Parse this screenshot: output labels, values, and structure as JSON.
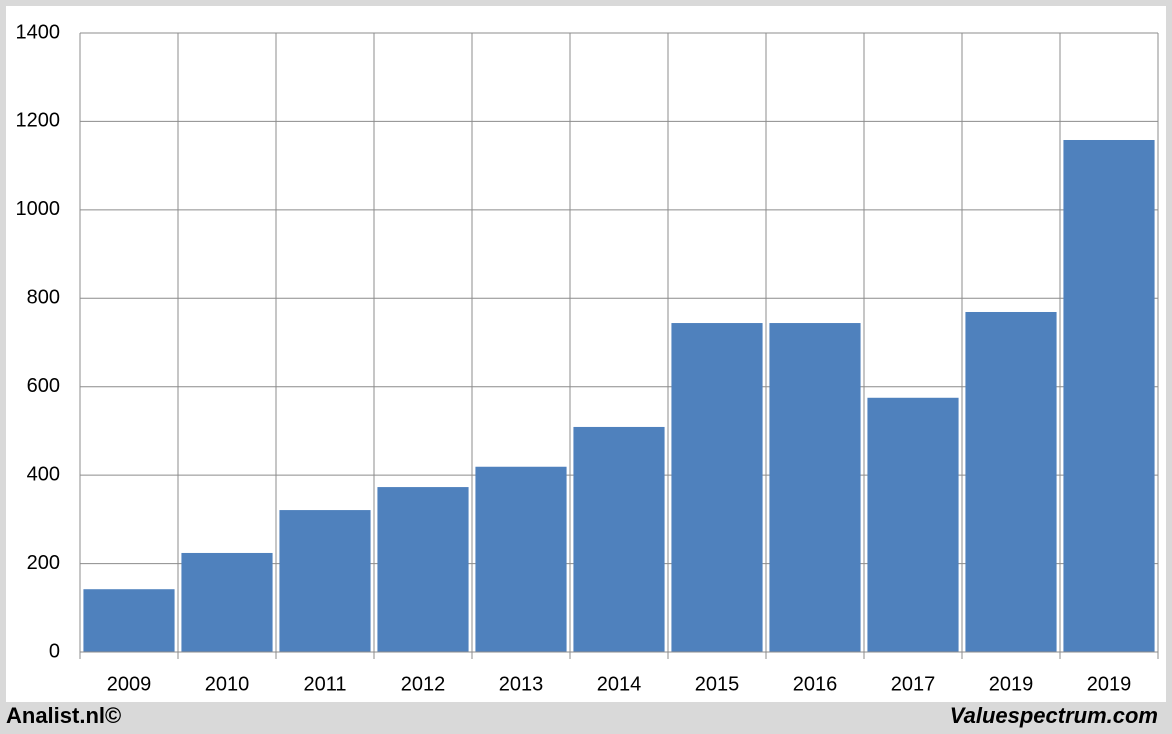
{
  "chart_data": {
    "type": "bar",
    "categories": [
      "2009",
      "2010",
      "2011",
      "2012",
      "2013",
      "2014",
      "2015",
      "2016",
      "2017",
      "2019",
      "2019"
    ],
    "values": [
      142,
      224,
      321,
      373,
      419,
      509,
      744,
      744,
      575,
      769,
      1158
    ],
    "color": "#4f81bd",
    "ylim": [
      0,
      1400
    ],
    "yticks": [
      0,
      200,
      400,
      600,
      800,
      1000,
      1200,
      1400
    ],
    "grid": true
  },
  "footer": {
    "left": "Analist.nl©",
    "right": "Valuespectrum.com"
  }
}
